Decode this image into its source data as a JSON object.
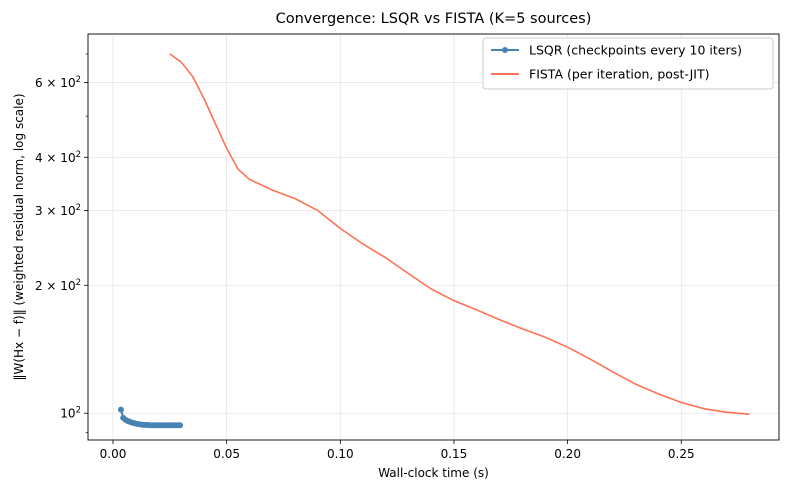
{
  "chart_data": {
    "type": "line",
    "title": "Convergence: LSQR vs FISTA (K=5 sources)",
    "xlabel": "Wall-clock time (s)",
    "ylabel": "‖W(Hx − f)‖  (weighted residual norm, log scale)",
    "xlim": [
      -0.011,
      0.293
    ],
    "ylim": [
      86.5,
      780
    ],
    "y_scale": "log",
    "grid": true,
    "legend_position": "top-right",
    "x_ticks": [
      {
        "value": 0.0,
        "label": "0.00"
      },
      {
        "value": 0.05,
        "label": "0.05"
      },
      {
        "value": 0.1,
        "label": "0.10"
      },
      {
        "value": 0.15,
        "label": "0.15"
      },
      {
        "value": 0.2,
        "label": "0.20"
      },
      {
        "value": 0.25,
        "label": "0.25"
      }
    ],
    "y_ticks": [
      {
        "value": 100,
        "base": "10",
        "exp": "2"
      },
      {
        "value": 200,
        "base": "2 × 10",
        "exp": "2"
      },
      {
        "value": 300,
        "base": "3 × 10",
        "exp": "2"
      },
      {
        "value": 400,
        "base": "4 × 10",
        "exp": "2"
      },
      {
        "value": 600,
        "base": "6 × 10",
        "exp": "2"
      }
    ],
    "y_minor_ticks": [
      90,
      500,
      700
    ],
    "series": [
      {
        "name": "LSQR (checkpoints every 10 iters)",
        "color": "#4682b4",
        "marker": "circle",
        "x": [
          0.0035,
          0.0045,
          0.0055,
          0.0065,
          0.0075,
          0.0085,
          0.0095,
          0.0105,
          0.0115,
          0.0125,
          0.0135,
          0.0145,
          0.0155,
          0.0165,
          0.0175,
          0.0185,
          0.0195,
          0.0205,
          0.0215,
          0.0225,
          0.0235,
          0.0245,
          0.0255,
          0.0265,
          0.0275,
          0.0285,
          0.0295
        ],
        "y": [
          102,
          97.5,
          96.5,
          95.9,
          95.4,
          95.0,
          94.7,
          94.4,
          94.2,
          94.0,
          93.9,
          93.8,
          93.8,
          93.7,
          93.7,
          93.7,
          93.7,
          93.7,
          93.7,
          93.7,
          93.7,
          93.7,
          93.7,
          93.7,
          93.7,
          93.7,
          93.7
        ]
      },
      {
        "name": "FISTA (per iteration, post-JIT)",
        "color": "#ff7256",
        "marker": "none",
        "x": [
          0.025,
          0.03,
          0.035,
          0.04,
          0.045,
          0.05,
          0.055,
          0.06,
          0.065,
          0.07,
          0.08,
          0.09,
          0.1,
          0.11,
          0.12,
          0.13,
          0.14,
          0.15,
          0.16,
          0.17,
          0.18,
          0.19,
          0.2,
          0.21,
          0.22,
          0.23,
          0.24,
          0.25,
          0.26,
          0.27,
          0.28
        ],
        "y": [
          700,
          670,
          620,
          550,
          480,
          420,
          375,
          355,
          345,
          335,
          320,
          300,
          272,
          250,
          232,
          213,
          196,
          184,
          175,
          166,
          158,
          151,
          143,
          134,
          125,
          117,
          111,
          106,
          102.5,
          100.5,
          99.5
        ]
      }
    ]
  }
}
